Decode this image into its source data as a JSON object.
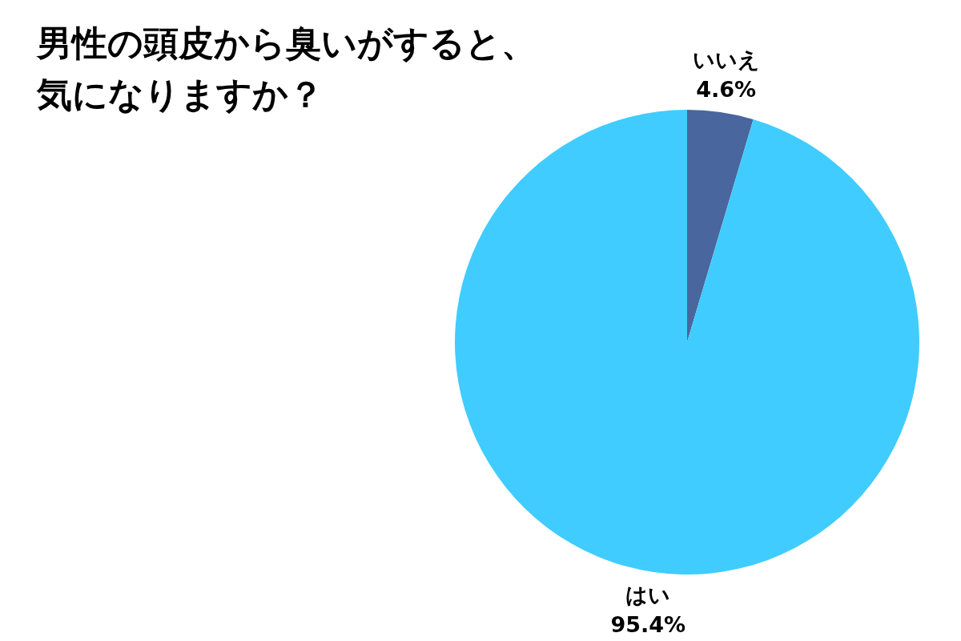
{
  "chart_data": {
    "type": "pie",
    "title": "男性の頭皮から臭いがすると、気になりますか？",
    "categories": [
      "いいえ",
      "はい"
    ],
    "values": [
      4.6,
      95.4
    ],
    "colors": [
      "#4a669e",
      "#40ccff"
    ],
    "value_labels": [
      "4.6%",
      "95.4%"
    ]
  }
}
